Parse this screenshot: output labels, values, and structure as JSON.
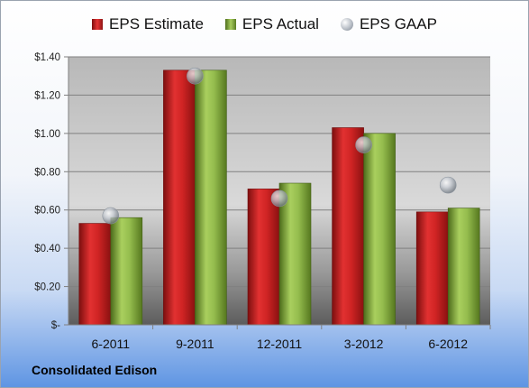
{
  "chart_data": {
    "type": "bar",
    "categories": [
      "6-2011",
      "9-2011",
      "12-2011",
      "3-2012",
      "6-2012"
    ],
    "series": [
      {
        "name": "EPS Estimate",
        "kind": "bar",
        "color": "#c91f1f",
        "values": [
          0.53,
          1.33,
          0.71,
          1.03,
          0.59
        ]
      },
      {
        "name": "EPS Actual",
        "kind": "bar",
        "color": "#8db04a",
        "values": [
          0.56,
          1.33,
          0.74,
          1.0,
          0.61
        ]
      },
      {
        "name": "EPS GAAP",
        "kind": "marker",
        "color": "#aab2bc",
        "values": [
          0.57,
          1.3,
          0.66,
          0.94,
          0.73
        ]
      }
    ],
    "yticks": [
      "$-",
      "$0.20",
      "$0.40",
      "$0.60",
      "$0.80",
      "$1.00",
      "$1.20",
      "$1.40"
    ],
    "ylim": [
      0,
      1.4
    ],
    "grid": true,
    "legend_position": "top"
  },
  "company": "Consolidated Edison"
}
